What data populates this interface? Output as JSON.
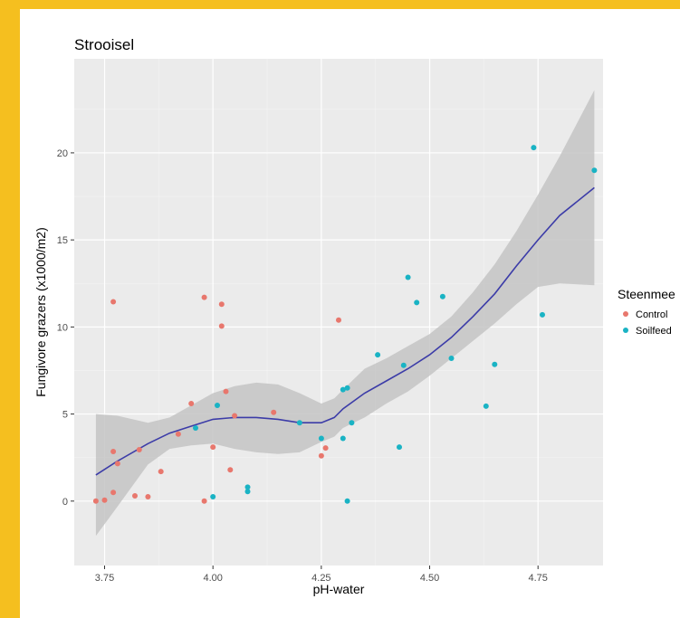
{
  "colors": {
    "panel": "#ebebeb",
    "grid_major": "#ffffff",
    "grid_minor": "#f4f4f4",
    "control": "#e8776d",
    "soilfeed": "#1ab3c4",
    "smooth": "#3c3ca8",
    "ribbon": "#c4c4c4"
  },
  "chart_data": {
    "type": "scatter",
    "title": "Strooisel",
    "xlabel": "pH-water",
    "ylabel": "Fungivore grazers (x1000/m2)",
    "xlim": [
      3.68,
      4.9
    ],
    "ylim": [
      -3.7,
      25.4
    ],
    "x_ticks": [
      3.75,
      4.0,
      4.25,
      4.5,
      4.75
    ],
    "x_tick_labels": [
      "3.75",
      "4.00",
      "4.25",
      "4.50",
      "4.75"
    ],
    "y_ticks": [
      0,
      5,
      10,
      15,
      20
    ],
    "y_tick_labels": [
      "0",
      "5",
      "10",
      "15",
      "20"
    ],
    "grid": true,
    "legend": {
      "title": "Steenmee",
      "placement": "right",
      "entries": [
        "Control",
        "Soilfeed"
      ]
    },
    "series": [
      {
        "name": "Control",
        "color": "#e8776d",
        "points": [
          [
            3.73,
            0.0
          ],
          [
            3.75,
            0.05
          ],
          [
            3.77,
            2.85
          ],
          [
            3.77,
            11.45
          ],
          [
            3.77,
            0.5
          ],
          [
            3.78,
            2.15
          ],
          [
            3.82,
            0.3
          ],
          [
            3.83,
            2.95
          ],
          [
            3.85,
            0.25
          ],
          [
            3.88,
            1.7
          ],
          [
            3.92,
            3.85
          ],
          [
            3.95,
            5.6
          ],
          [
            3.98,
            0.0
          ],
          [
            3.98,
            11.7
          ],
          [
            4.0,
            3.1
          ],
          [
            4.02,
            11.3
          ],
          [
            4.02,
            10.05
          ],
          [
            4.03,
            6.3
          ],
          [
            4.04,
            1.8
          ],
          [
            4.05,
            4.9
          ],
          [
            4.14,
            5.1
          ],
          [
            4.25,
            2.6
          ],
          [
            4.26,
            3.05
          ],
          [
            4.29,
            10.4
          ]
        ]
      },
      {
        "name": "Soilfeed",
        "color": "#1ab3c4",
        "points": [
          [
            3.96,
            4.2
          ],
          [
            4.0,
            0.25
          ],
          [
            4.01,
            5.5
          ],
          [
            4.08,
            0.8
          ],
          [
            4.08,
            0.55
          ],
          [
            4.2,
            4.5
          ],
          [
            4.25,
            3.6
          ],
          [
            4.3,
            6.4
          ],
          [
            4.3,
            3.6
          ],
          [
            4.31,
            6.5
          ],
          [
            4.31,
            0.0
          ],
          [
            4.32,
            4.5
          ],
          [
            4.38,
            8.4
          ],
          [
            4.43,
            3.1
          ],
          [
            4.44,
            7.8
          ],
          [
            4.45,
            12.85
          ],
          [
            4.47,
            11.4
          ],
          [
            4.53,
            11.75
          ],
          [
            4.55,
            8.2
          ],
          [
            4.63,
            5.45
          ],
          [
            4.65,
            7.85
          ],
          [
            4.74,
            20.3
          ],
          [
            4.76,
            10.7
          ],
          [
            4.88,
            19.0
          ]
        ]
      }
    ],
    "smooth": {
      "type": "loess",
      "points": [
        [
          3.73,
          1.5
        ],
        [
          3.78,
          2.3
        ],
        [
          3.85,
          3.3
        ],
        [
          3.9,
          3.9
        ],
        [
          3.95,
          4.3
        ],
        [
          4.0,
          4.7
        ],
        [
          4.05,
          4.8
        ],
        [
          4.1,
          4.8
        ],
        [
          4.15,
          4.7
        ],
        [
          4.2,
          4.5
        ],
        [
          4.25,
          4.5
        ],
        [
          4.28,
          4.8
        ],
        [
          4.3,
          5.3
        ],
        [
          4.35,
          6.2
        ],
        [
          4.4,
          6.9
        ],
        [
          4.45,
          7.6
        ],
        [
          4.5,
          8.4
        ],
        [
          4.55,
          9.4
        ],
        [
          4.6,
          10.6
        ],
        [
          4.65,
          11.9
        ],
        [
          4.7,
          13.5
        ],
        [
          4.75,
          15.0
        ],
        [
          4.8,
          16.4
        ],
        [
          4.88,
          18.0
        ]
      ],
      "upper": [
        [
          3.73,
          5.0
        ],
        [
          3.78,
          4.9
        ],
        [
          3.85,
          4.5
        ],
        [
          3.9,
          4.8
        ],
        [
          3.95,
          5.5
        ],
        [
          4.0,
          6.2
        ],
        [
          4.05,
          6.6
        ],
        [
          4.1,
          6.8
        ],
        [
          4.15,
          6.7
        ],
        [
          4.2,
          6.2
        ],
        [
          4.25,
          5.6
        ],
        [
          4.28,
          5.9
        ],
        [
          4.3,
          6.4
        ],
        [
          4.35,
          7.6
        ],
        [
          4.4,
          8.2
        ],
        [
          4.45,
          8.9
        ],
        [
          4.5,
          9.6
        ],
        [
          4.55,
          10.6
        ],
        [
          4.6,
          12.0
        ],
        [
          4.65,
          13.6
        ],
        [
          4.7,
          15.5
        ],
        [
          4.75,
          17.6
        ],
        [
          4.8,
          19.8
        ],
        [
          4.88,
          23.6
        ]
      ],
      "lower": [
        [
          3.73,
          -2.0
        ],
        [
          3.78,
          -0.3
        ],
        [
          3.85,
          2.1
        ],
        [
          3.9,
          3.0
        ],
        [
          3.95,
          3.2
        ],
        [
          4.0,
          3.3
        ],
        [
          4.05,
          3.0
        ],
        [
          4.1,
          2.8
        ],
        [
          4.15,
          2.7
        ],
        [
          4.2,
          2.8
        ],
        [
          4.25,
          3.4
        ],
        [
          4.28,
          3.7
        ],
        [
          4.3,
          4.2
        ],
        [
          4.35,
          4.8
        ],
        [
          4.4,
          5.6
        ],
        [
          4.45,
          6.3
        ],
        [
          4.5,
          7.2
        ],
        [
          4.55,
          8.2
        ],
        [
          4.6,
          9.2
        ],
        [
          4.65,
          10.2
        ],
        [
          4.7,
          11.3
        ],
        [
          4.75,
          12.3
        ],
        [
          4.8,
          12.5
        ],
        [
          4.88,
          12.4
        ]
      ]
    }
  }
}
